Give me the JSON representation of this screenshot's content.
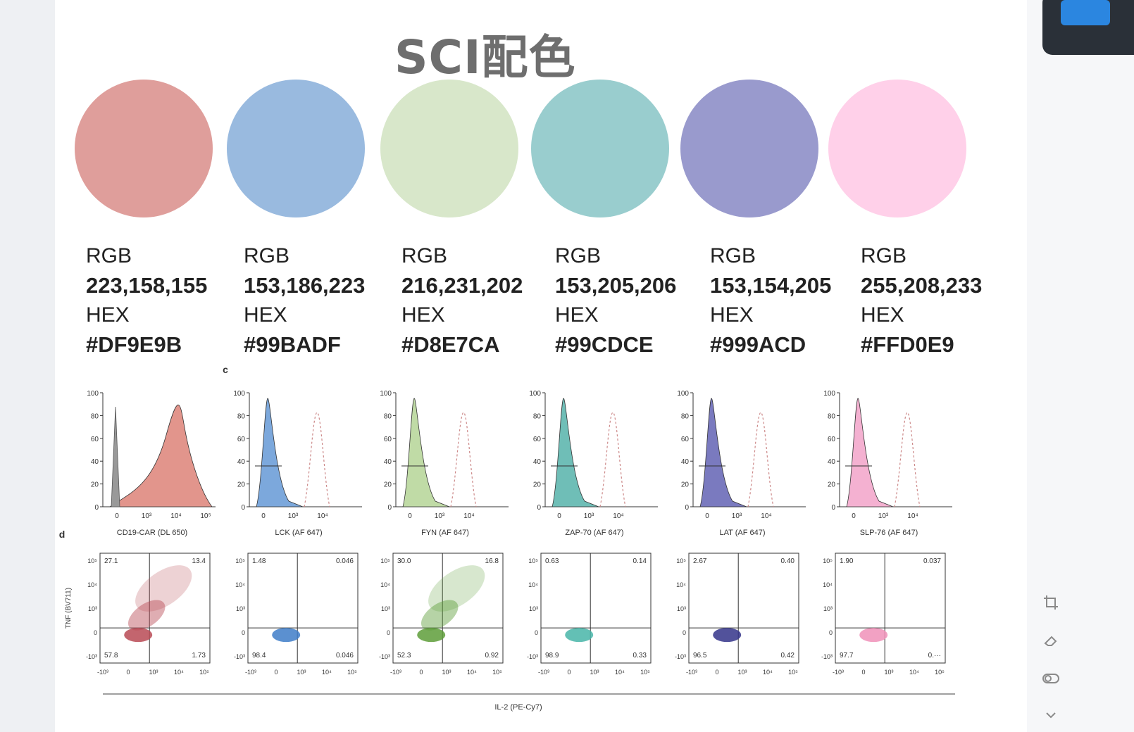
{
  "title": "SCI配色",
  "swatches": [
    {
      "rgb_label": "RGB",
      "rgb": "223,158,155",
      "hex_label": "HEX",
      "hex": "#DF9E9B",
      "color": "#DF9E9B"
    },
    {
      "rgb_label": "RGB",
      "rgb": "153,186,223",
      "hex_label": "HEX",
      "hex": "#99BADF",
      "color": "#99BADF"
    },
    {
      "rgb_label": "RGB",
      "rgb": "216,231,202",
      "hex_label": "HEX",
      "hex": "#D8E7CA",
      "color": "#D8E7CA"
    },
    {
      "rgb_label": "RGB",
      "rgb": "153,205,206",
      "hex_label": "HEX",
      "hex": "#99CDCE",
      "color": "#99CDCE"
    },
    {
      "rgb_label": "RGB",
      "rgb": "153,154,205",
      "hex_label": "HEX",
      "hex": "#999ACD",
      "color": "#999ACD"
    },
    {
      "rgb_label": "RGB",
      "rgb": "255,208,233",
      "hex_label": "HEX",
      "hex": "#FFD0E9",
      "color": "#FFD0E9"
    }
  ],
  "figure": {
    "panel_c_label": "c",
    "panel_d_label": "d",
    "histograms": [
      {
        "xlabel": "CD19-CAR (DL 650)",
        "color": "#DF8A80",
        "yticks": [
          "100",
          "80",
          "60",
          "40",
          "20",
          "0"
        ],
        "xticks": [
          "0",
          "10³",
          "10⁴",
          "10⁵"
        ]
      },
      {
        "xlabel": "LCK (AF 647)",
        "color": "#6E9FD8",
        "yticks": [
          "100",
          "80",
          "60",
          "40",
          "20",
          "0"
        ],
        "xticks": [
          "0",
          "10³",
          "10⁴"
        ]
      },
      {
        "xlabel": "FYN (AF 647)",
        "color": "#B9D79C",
        "yticks": [
          "100",
          "80",
          "60",
          "40",
          "20",
          "0"
        ],
        "xticks": [
          "0",
          "10³",
          "10⁴"
        ]
      },
      {
        "xlabel": "ZAP-70 (AF 647)",
        "color": "#5FB7AF",
        "yticks": [
          "100",
          "80",
          "60",
          "40",
          "20",
          "0"
        ],
        "xticks": [
          "0",
          "10³",
          "10⁴"
        ]
      },
      {
        "xlabel": "LAT (AF 647)",
        "color": "#6C6CB8",
        "yticks": [
          "100",
          "80",
          "60",
          "40",
          "20",
          "0"
        ],
        "xticks": [
          "0",
          "10³",
          "10⁴"
        ]
      },
      {
        "xlabel": "SLP-76 (AF 647)",
        "color": "#F3A9CC",
        "yticks": [
          "100",
          "80",
          "60",
          "40",
          "20",
          "0"
        ],
        "xticks": [
          "0",
          "10³",
          "10⁴"
        ]
      }
    ],
    "scatter_ylabel": "TNF (BV711)",
    "scatter_xlabel": "IL-2 (PE-Cy7)",
    "scatters": [
      {
        "tl": "27.1",
        "tr": "13.4",
        "bl": "57.8",
        "br": "1.73",
        "color": "#B84A55"
      },
      {
        "tl": "1.48",
        "tr": "0.046",
        "bl": "98.4",
        "br": "0.046",
        "color": "#3E7CC8"
      },
      {
        "tl": "30.0",
        "tr": "16.8",
        "bl": "52.3",
        "br": "0.92",
        "color": "#5E9E3A"
      },
      {
        "tl": "0.63",
        "tr": "0.14",
        "bl": "98.9",
        "br": "0.33",
        "color": "#48B5A8"
      },
      {
        "tl": "2.67",
        "tr": "0.40",
        "bl": "96.5",
        "br": "0.42",
        "color": "#34348A"
      },
      {
        "tl": "1.90",
        "tr": "0.037",
        "bl": "97.7",
        "br": "0.···",
        "color": "#F090B8"
      }
    ],
    "scatter_yticks": [
      "10⁵",
      "10⁴",
      "10³",
      "0",
      "-10³"
    ],
    "scatter_xticks": [
      "-10³",
      "0",
      "10³",
      "10⁴",
      "10⁵"
    ]
  },
  "toolbar": {
    "crop_icon": "crop-icon",
    "eraser_icon": "eraser-icon",
    "toggle_icon": "toggle-icon",
    "chevron_icon": "chevron-down-icon"
  }
}
